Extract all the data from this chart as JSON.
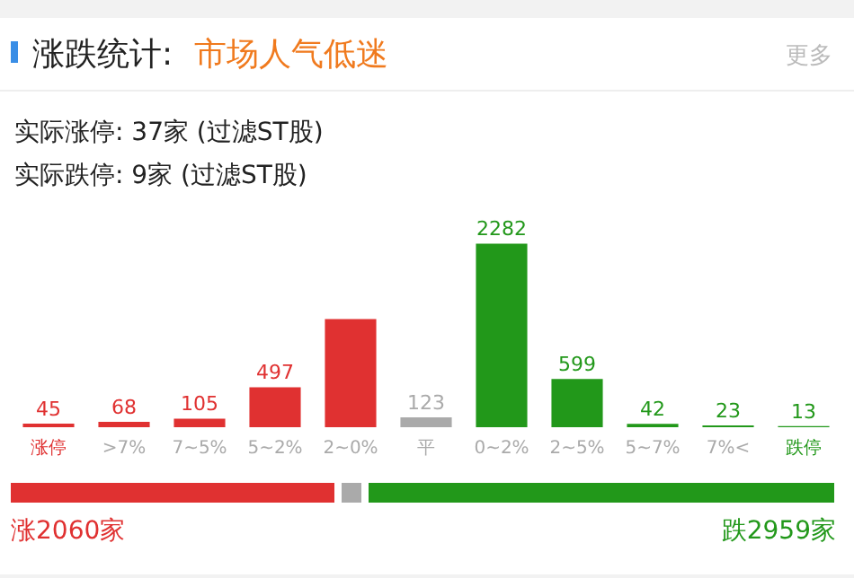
{
  "chart_data": {
    "type": "bar",
    "title": "涨跌统计:",
    "subtitle": "市场人气低迷",
    "categories": [
      "涨停",
      ">7%",
      "7~5%",
      "5~2%",
      "2~0%",
      "平",
      "0~2%",
      "2~5%",
      "5~7%",
      "7%<",
      "跌停"
    ],
    "values": [
      45,
      68,
      105,
      497,
      1345,
      123,
      2282,
      599,
      42,
      23,
      13
    ],
    "value_labels": [
      "45",
      "68",
      "105",
      "497",
      null,
      "123",
      "2282",
      "599",
      "42",
      "23",
      "13"
    ],
    "colors": [
      "#e03131",
      "#e03131",
      "#e03131",
      "#e03131",
      "#e03131",
      "#aaaaaa",
      "#22981a",
      "#22981a",
      "#22981a",
      "#22981a",
      "#22981a"
    ],
    "annotations": [
      "更多",
      "实际涨停: 37家 (过滤ST股)",
      "实际跌停: 9家 (过滤ST股)",
      "涨2060家",
      "跌2959家"
    ],
    "grid": false,
    "legend": false
  }
}
